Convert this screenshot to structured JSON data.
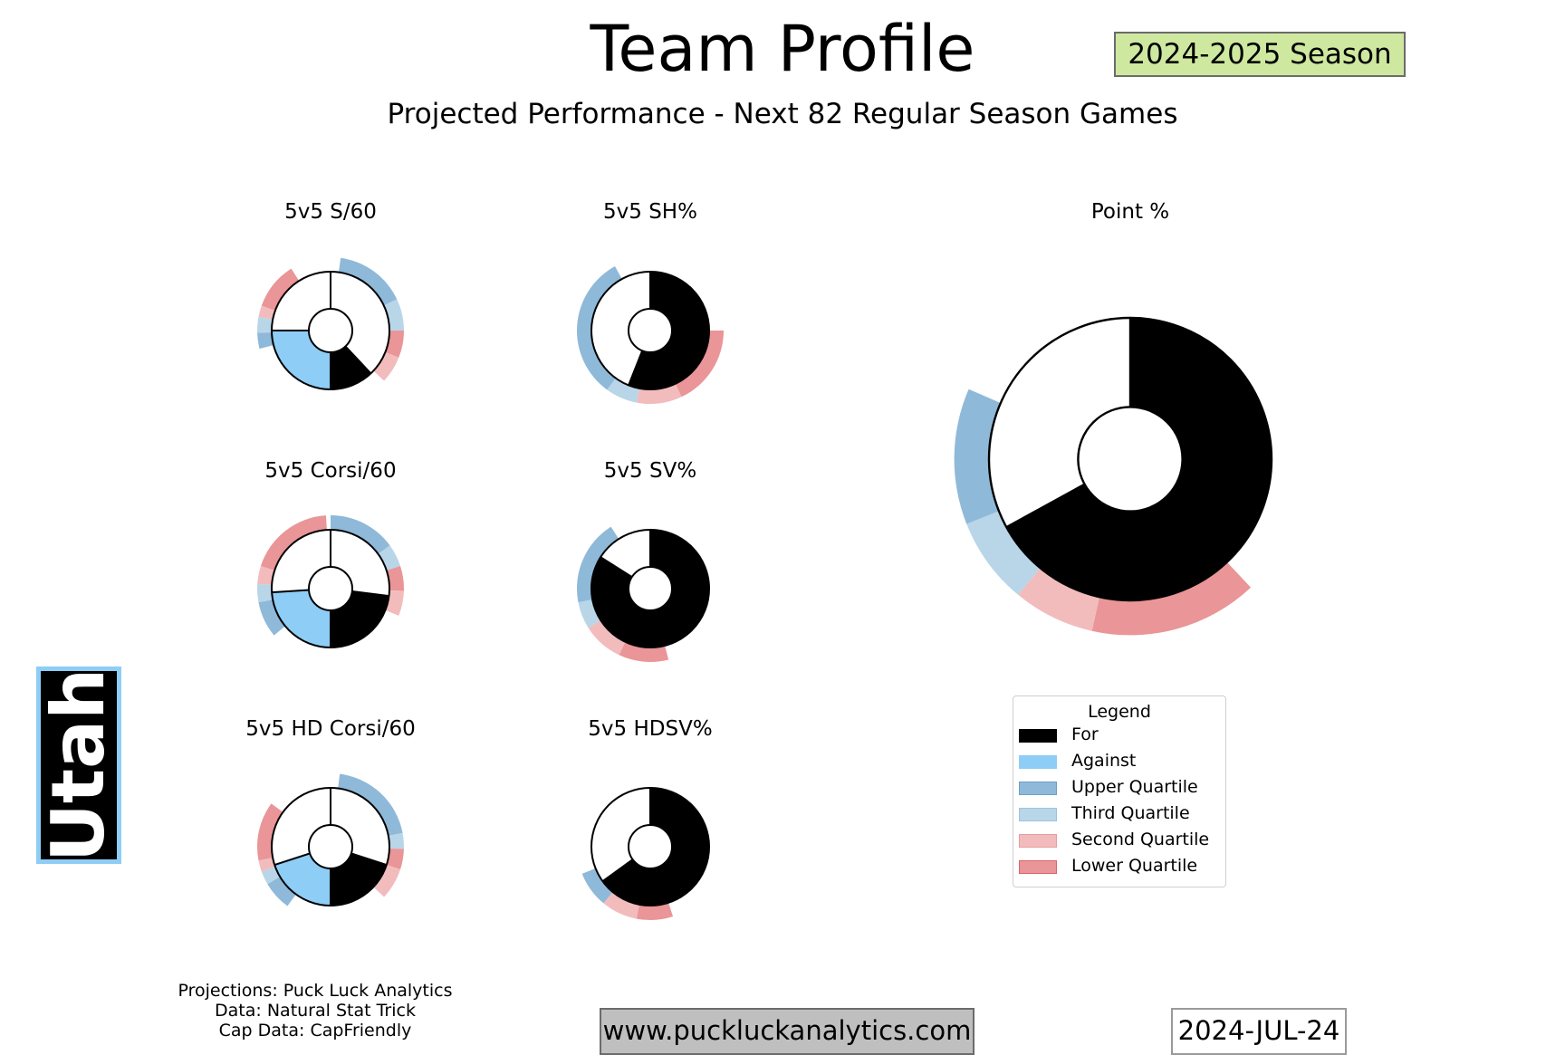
{
  "header": {
    "title": "Team Profile",
    "subtitle": "Projected Performance - Next 82 Regular Season Games",
    "season": "2024-2025 Season"
  },
  "team": {
    "name": "Utah",
    "color": "#8ecdf6"
  },
  "colors": {
    "for": "#000000",
    "against": "#8ecdf6",
    "rest": "#ffffff",
    "upper": "#8fb9d9",
    "third": "#b9d6e9",
    "second": "#f2bcbd",
    "lower": "#ea9597"
  },
  "legend": {
    "title": "Legend",
    "items": [
      {
        "label": "For",
        "key": "for"
      },
      {
        "label": "Against",
        "key": "against"
      },
      {
        "label": "Upper Quartile",
        "key": "upper"
      },
      {
        "label": "Third Quartile",
        "key": "third"
      },
      {
        "label": "Second Quartile",
        "key": "second"
      },
      {
        "label": "Lower Quartile",
        "key": "lower"
      }
    ]
  },
  "chart_data": [
    {
      "type": "pie",
      "title": "5v5 S/60",
      "dual": true,
      "for": 0.12,
      "against": 0.25,
      "quartiles": [
        {
          "q": "upper",
          "from": 0.022,
          "to": 0.18
        },
        {
          "q": "third",
          "from": 0.18,
          "to": 0.25
        },
        {
          "q": "lower",
          "from": 0.25,
          "to": 0.31
        },
        {
          "q": "second",
          "from": 0.31,
          "to": 0.37
        },
        {
          "q": "upper",
          "from": 0.71,
          "to": 0.745
        },
        {
          "q": "third",
          "from": 0.745,
          "to": 0.78
        },
        {
          "q": "second",
          "from": 0.78,
          "to": 0.805
        },
        {
          "q": "lower",
          "from": 0.805,
          "to": 0.91
        }
      ]
    },
    {
      "type": "pie",
      "title": "5v5 SH%",
      "dual": false,
      "for": 0.56,
      "quartiles": [
        {
          "q": "lower",
          "from": 0.25,
          "to": 0.43
        },
        {
          "q": "second",
          "from": 0.43,
          "to": 0.53
        },
        {
          "q": "third",
          "from": 0.53,
          "to": 0.6
        },
        {
          "q": "upper",
          "from": 0.6,
          "to": 0.92
        }
      ]
    },
    {
      "type": "pie",
      "title": "5v5 Corsi/60",
      "dual": true,
      "for": 0.23,
      "against": 0.24,
      "quartiles": [
        {
          "q": "upper",
          "from": 0.0,
          "to": 0.15
        },
        {
          "q": "third",
          "from": 0.15,
          "to": 0.2
        },
        {
          "q": "lower",
          "from": 0.2,
          "to": 0.255
        },
        {
          "q": "second",
          "from": 0.255,
          "to": 0.31
        },
        {
          "q": "upper",
          "from": 0.64,
          "to": 0.72
        },
        {
          "q": "third",
          "from": 0.72,
          "to": 0.76
        },
        {
          "q": "second",
          "from": 0.76,
          "to": 0.8
        },
        {
          "q": "lower",
          "from": 0.8,
          "to": 0.99
        }
      ]
    },
    {
      "type": "pie",
      "title": "5v5 SV%",
      "dual": false,
      "for": 0.84,
      "quartiles": [
        {
          "q": "lower",
          "from": 0.46,
          "to": 0.57
        },
        {
          "q": "second",
          "from": 0.57,
          "to": 0.66
        },
        {
          "q": "third",
          "from": 0.66,
          "to": 0.72
        },
        {
          "q": "upper",
          "from": 0.72,
          "to": 0.91
        }
      ]
    },
    {
      "type": "pie",
      "title": "5v5 HD Corsi/60",
      "dual": true,
      "for": 0.2,
      "against": 0.2,
      "quartiles": [
        {
          "q": "upper",
          "from": 0.02,
          "to": 0.22
        },
        {
          "q": "third",
          "from": 0.22,
          "to": 0.255
        },
        {
          "q": "lower",
          "from": 0.255,
          "to": 0.3
        },
        {
          "q": "second",
          "from": 0.3,
          "to": 0.37
        },
        {
          "q": "upper",
          "from": 0.6,
          "to": 0.665
        },
        {
          "q": "third",
          "from": 0.665,
          "to": 0.695
        },
        {
          "q": "second",
          "from": 0.695,
          "to": 0.72
        },
        {
          "q": "lower",
          "from": 0.72,
          "to": 0.85
        }
      ]
    },
    {
      "type": "pie",
      "title": "5v5 HDSV%",
      "dual": false,
      "for": 0.65,
      "quartiles": [
        {
          "q": "lower",
          "from": 0.45,
          "to": 0.53
        },
        {
          "q": "second",
          "from": 0.53,
          "to": 0.61
        },
        {
          "q": "upper",
          "from": 0.61,
          "to": 0.69
        }
      ]
    },
    {
      "type": "pie",
      "title": "Point %",
      "dual": false,
      "for": 0.67,
      "quartiles": [
        {
          "q": "lower",
          "from": 0.38,
          "to": 0.535
        },
        {
          "q": "second",
          "from": 0.535,
          "to": 0.61
        },
        {
          "q": "third",
          "from": 0.61,
          "to": 0.69
        },
        {
          "q": "upper",
          "from": 0.69,
          "to": 0.815
        }
      ]
    }
  ],
  "footer": {
    "credits": [
      "Projections: Puck Luck Analytics",
      "Data: Natural Stat Trick",
      "Cap Data: CapFriendly"
    ],
    "website": "www.puckluckanalytics.com",
    "date": "2024-JUL-24"
  }
}
